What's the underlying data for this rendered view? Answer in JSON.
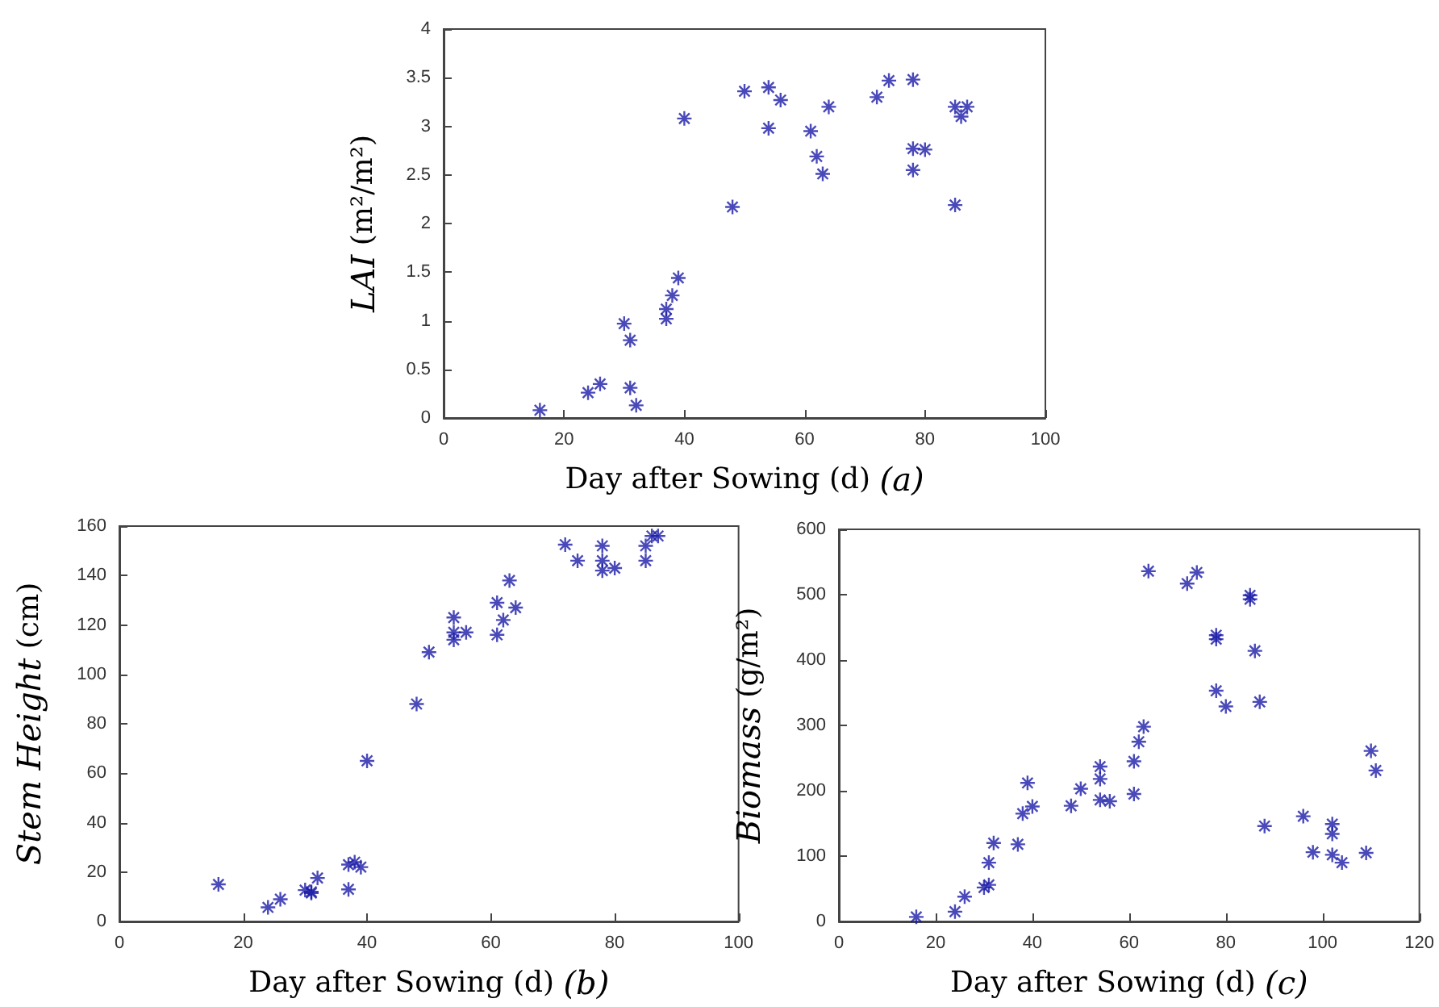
{
  "chart_data": [
    {
      "type": "scatter",
      "xlabel": "Day after Sowing (d) (a)",
      "ylabel": "LAI (m²/m²)",
      "xlim": [
        0,
        100
      ],
      "xticks": [
        0,
        20,
        40,
        60,
        80,
        100
      ],
      "ylim": [
        0,
        4
      ],
      "yticks": [
        0,
        0.5,
        1,
        1.5,
        2,
        2.5,
        3,
        3.5,
        4
      ],
      "marker": "cross",
      "grid": false,
      "series": [
        {
          "color": "#1c1ca8",
          "x": [
            16,
            24,
            26,
            30,
            31,
            31,
            32,
            37,
            37,
            38,
            39,
            40,
            48,
            50,
            54,
            54,
            56,
            61,
            62,
            63,
            64,
            72,
            74,
            78,
            78,
            78,
            80,
            85,
            85,
            86,
            87
          ],
          "values": [
            0.08,
            0.26,
            0.35,
            0.97,
            0.8,
            0.31,
            0.13,
            1.02,
            1.12,
            1.26,
            1.44,
            3.08,
            2.17,
            3.36,
            3.4,
            2.98,
            3.27,
            2.95,
            2.69,
            2.51,
            3.2,
            3.3,
            3.47,
            3.48,
            2.77,
            2.55,
            2.76,
            3.2,
            2.19,
            3.1,
            3.2
          ]
        }
      ]
    },
    {
      "type": "scatter",
      "xlabel": "Day after Sowing (d) (b)",
      "ylabel": "Stem Height (cm)",
      "xlim": [
        0,
        100
      ],
      "xticks": [
        0,
        20,
        40,
        60,
        80,
        100
      ],
      "ylim": [
        0,
        160
      ],
      "yticks": [
        0,
        20,
        40,
        60,
        80,
        100,
        120,
        140,
        160
      ],
      "marker": "cross",
      "grid": false,
      "series": [
        {
          "color": "#1c1ca8",
          "x": [
            16,
            24,
            26,
            30,
            31,
            31,
            32,
            37,
            37,
            38,
            39,
            40,
            48,
            50,
            54,
            54,
            54,
            56,
            61,
            61,
            62,
            63,
            64,
            72,
            74,
            78,
            78,
            78,
            80,
            85,
            85,
            86,
            87
          ],
          "values": [
            15,
            5.7,
            9,
            12.7,
            12,
            11.5,
            17.6,
            13,
            23,
            24,
            22,
            65,
            88,
            109,
            123,
            117,
            114,
            117,
            129,
            116,
            122,
            138,
            127,
            152.5,
            146,
            152,
            146,
            142,
            143,
            152,
            146,
            156,
            156
          ]
        }
      ]
    },
    {
      "type": "scatter",
      "xlabel": "Day after Sowing (d) (c)",
      "ylabel": "Biomass (g/m²)",
      "xlim": [
        0,
        120
      ],
      "xticks": [
        0,
        20,
        40,
        60,
        80,
        100,
        120
      ],
      "ylim": [
        0,
        600
      ],
      "yticks": [
        0,
        100,
        200,
        300,
        400,
        500,
        600
      ],
      "marker": "cross",
      "grid": false,
      "series": [
        {
          "color": "#1c1ca8",
          "x": [
            16,
            24,
            26,
            30,
            31,
            31,
            32,
            37,
            38,
            39,
            40,
            48,
            50,
            54,
            54,
            54,
            56,
            61,
            61,
            62,
            63,
            64,
            72,
            74,
            78,
            78,
            78,
            80,
            85,
            85,
            86,
            87,
            88,
            96,
            98,
            102,
            102,
            102,
            104,
            109,
            110,
            111
          ],
          "values": [
            7,
            15,
            38,
            52,
            56,
            90,
            120,
            118,
            165,
            212,
            176,
            177,
            203,
            237,
            218,
            186,
            184,
            245,
            195,
            275,
            298,
            536,
            517,
            534,
            438,
            432,
            353,
            329,
            499,
            493,
            414,
            336,
            146,
            161,
            106,
            149,
            134,
            102,
            90,
            105,
            261,
            231
          ]
        }
      ]
    }
  ]
}
